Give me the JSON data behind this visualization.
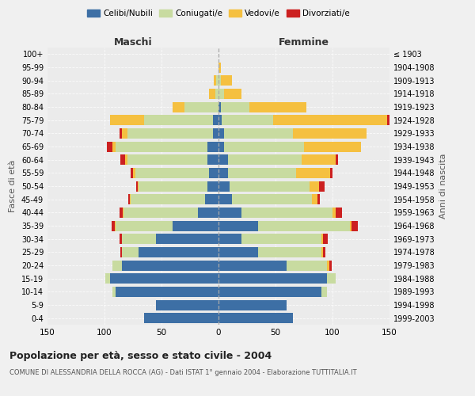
{
  "age_groups": [
    "0-4",
    "5-9",
    "10-14",
    "15-19",
    "20-24",
    "25-29",
    "30-34",
    "35-39",
    "40-44",
    "45-49",
    "50-54",
    "55-59",
    "60-64",
    "65-69",
    "70-74",
    "75-79",
    "80-84",
    "85-89",
    "90-94",
    "95-99",
    "100+"
  ],
  "birth_years": [
    "1999-2003",
    "1994-1998",
    "1989-1993",
    "1984-1988",
    "1979-1983",
    "1974-1978",
    "1969-1973",
    "1964-1968",
    "1959-1963",
    "1954-1958",
    "1949-1953",
    "1944-1948",
    "1939-1943",
    "1934-1938",
    "1929-1933",
    "1924-1928",
    "1919-1923",
    "1914-1918",
    "1909-1913",
    "1904-1908",
    "≤ 1903"
  ],
  "maschi": {
    "celibi": [
      65,
      55,
      90,
      95,
      85,
      70,
      55,
      40,
      18,
      12,
      10,
      8,
      10,
      10,
      5,
      5,
      0,
      0,
      0,
      0,
      0
    ],
    "coniugati": [
      0,
      0,
      3,
      4,
      8,
      15,
      30,
      50,
      65,
      65,
      60,
      65,
      70,
      80,
      75,
      60,
      30,
      3,
      2,
      0,
      0
    ],
    "vedovi": [
      0,
      0,
      0,
      0,
      0,
      0,
      0,
      1,
      1,
      1,
      1,
      2,
      2,
      3,
      5,
      30,
      10,
      5,
      2,
      0,
      0
    ],
    "divorziati": [
      0,
      0,
      0,
      0,
      0,
      1,
      2,
      3,
      3,
      1,
      1,
      2,
      4,
      5,
      2,
      0,
      0,
      0,
      0,
      0,
      0
    ]
  },
  "femmine": {
    "nubili": [
      65,
      60,
      90,
      95,
      60,
      35,
      20,
      35,
      20,
      12,
      10,
      8,
      8,
      5,
      5,
      3,
      2,
      0,
      0,
      0,
      0
    ],
    "coniugate": [
      0,
      0,
      5,
      8,
      35,
      55,
      70,
      80,
      80,
      70,
      70,
      60,
      65,
      70,
      60,
      45,
      25,
      5,
      2,
      0,
      0
    ],
    "vedove": [
      0,
      0,
      0,
      0,
      2,
      2,
      2,
      2,
      3,
      5,
      8,
      30,
      30,
      50,
      65,
      100,
      50,
      15,
      10,
      2,
      0
    ],
    "divorziate": [
      0,
      0,
      0,
      0,
      2,
      2,
      4,
      5,
      5,
      2,
      5,
      2,
      2,
      0,
      0,
      3,
      0,
      0,
      0,
      0,
      0
    ]
  },
  "colors": {
    "celibi_nubili": "#3d6fa5",
    "coniugati": "#c8dba0",
    "vedovi": "#f5c040",
    "divorziati": "#cc2020"
  },
  "xlim": 150,
  "title": "Popolazione per età, sesso e stato civile - 2004",
  "subtitle": "COMUNE DI ALESSANDRIA DELLA ROCCA (AG) - Dati ISTAT 1° gennaio 2004 - Elaborazione TUTTITALIA.IT",
  "ylabel_left": "Fasce di età",
  "ylabel_right": "Anni di nascita",
  "xlabel_left": "Maschi",
  "xlabel_right": "Femmine",
  "legend_labels": [
    "Celibi/Nubili",
    "Coniugati/e",
    "Vedovi/e",
    "Divorziati/e"
  ],
  "bg_color": "#f0f0f0",
  "plot_bg": "#ebebeb"
}
